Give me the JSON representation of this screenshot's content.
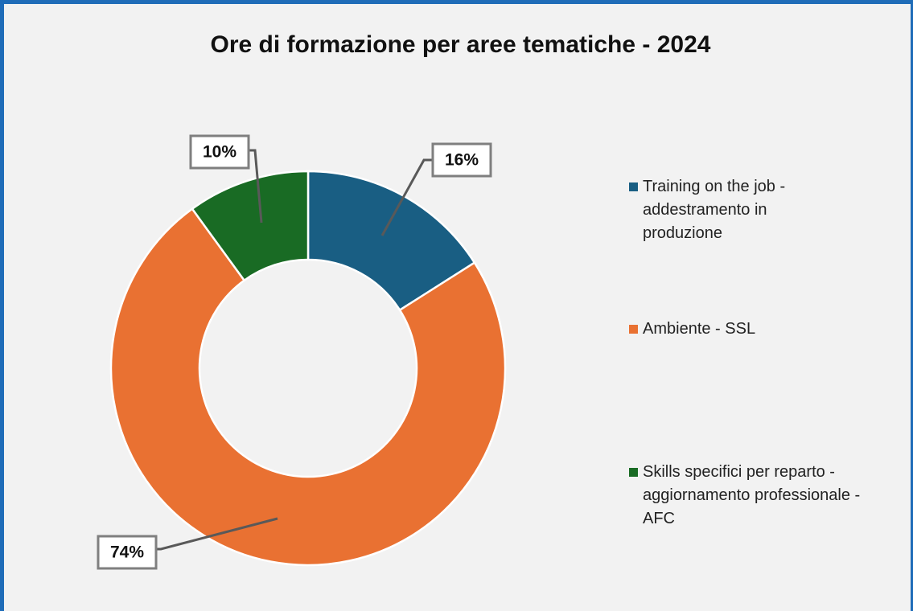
{
  "chart_data": {
    "type": "donut",
    "title": "Ore di formazione per aree tematiche - 2024",
    "categories": [
      "Training on the job - addestramento in produzione",
      "Ambiente - SSL",
      "Skills specifici per reparto - aggiornamento professionale - AFC"
    ],
    "values": [
      16,
      74,
      10
    ],
    "value_labels": [
      "16%",
      "74%",
      "10%"
    ],
    "colors": [
      "#195e83",
      "#e97132",
      "#196b24"
    ],
    "legend": "right"
  }
}
